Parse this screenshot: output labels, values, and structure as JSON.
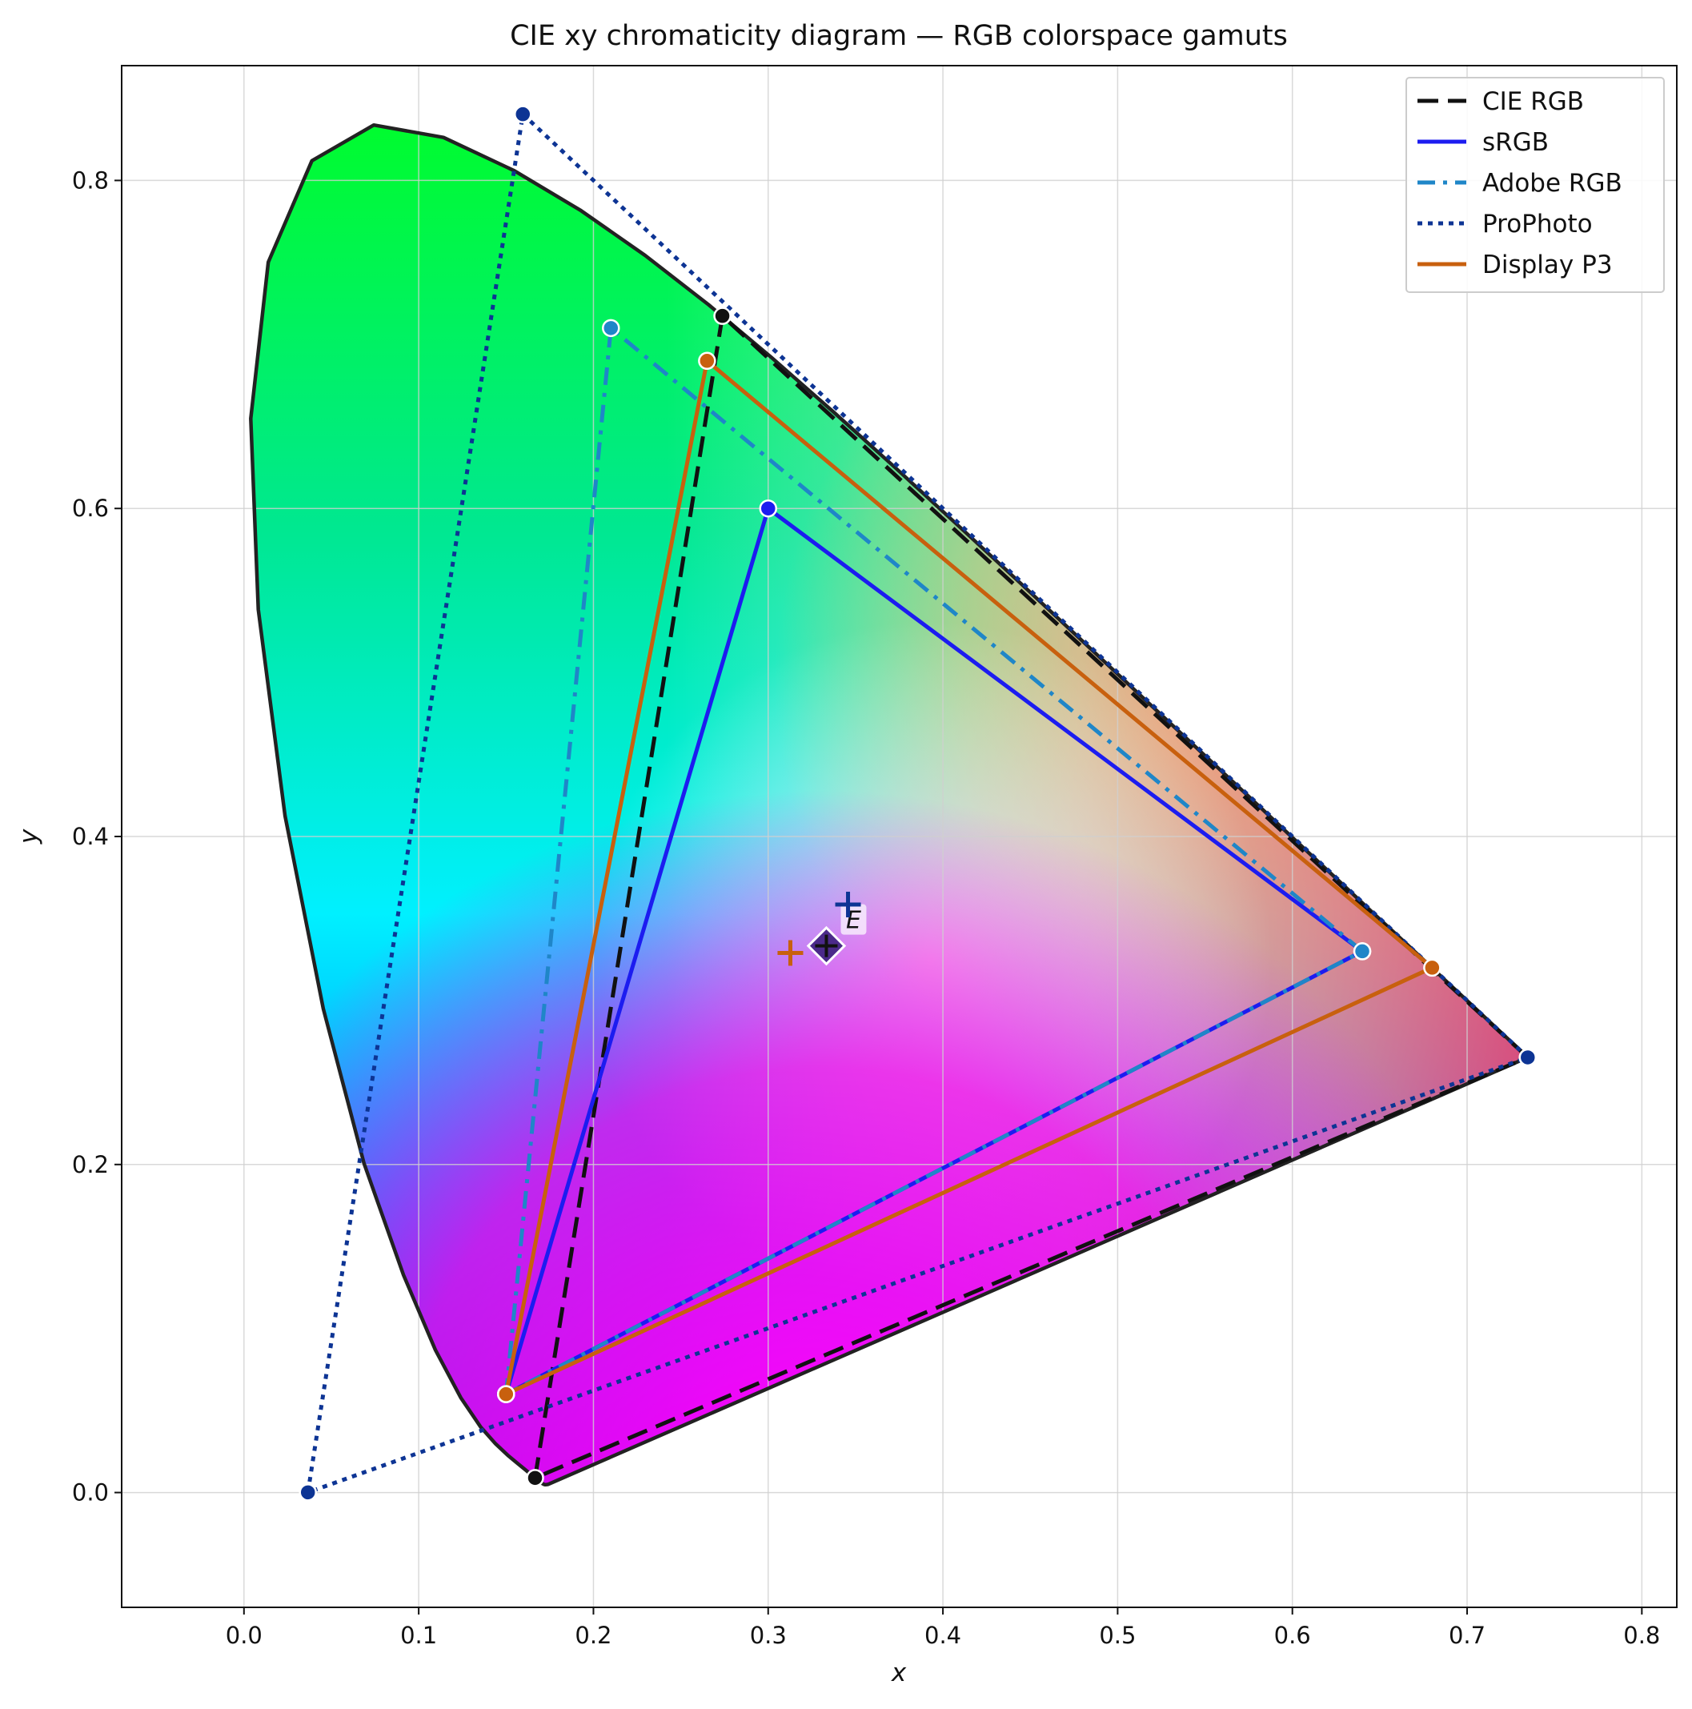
{
  "chart_data": {
    "type": "scatter",
    "title": "CIE xy chromaticity diagram — RGB colorspace gamuts",
    "xlabel": "x",
    "ylabel": "y",
    "xlim": [
      -0.07,
      0.82
    ],
    "ylim": [
      -0.07,
      0.87
    ],
    "grid": true,
    "legend_position": "top-right",
    "x_ticks": [
      "0.0",
      "0.1",
      "0.2",
      "0.3",
      "0.4",
      "0.5",
      "0.6",
      "0.7",
      "0.8"
    ],
    "y_ticks": [
      "0.0",
      "0.2",
      "0.4",
      "0.6",
      "0.8"
    ],
    "spectral_locus": [
      [
        0.1741,
        0.005
      ],
      [
        0.1738,
        0.0049
      ],
      [
        0.1736,
        0.0049
      ],
      [
        0.173,
        0.0048
      ],
      [
        0.1721,
        0.0048
      ],
      [
        0.1714,
        0.0051
      ],
      [
        0.1703,
        0.0058
      ],
      [
        0.1689,
        0.0069
      ],
      [
        0.1669,
        0.0086
      ],
      [
        0.1644,
        0.0109
      ],
      [
        0.1611,
        0.0138
      ],
      [
        0.1566,
        0.0177
      ],
      [
        0.151,
        0.0227
      ],
      [
        0.144,
        0.0297
      ],
      [
        0.1355,
        0.0399
      ],
      [
        0.1241,
        0.0578
      ],
      [
        0.1096,
        0.0868
      ],
      [
        0.0913,
        0.1327
      ],
      [
        0.0687,
        0.2007
      ],
      [
        0.0454,
        0.295
      ],
      [
        0.0235,
        0.4127
      ],
      [
        0.0082,
        0.5384
      ],
      [
        0.0039,
        0.6548
      ],
      [
        0.0139,
        0.7502
      ],
      [
        0.0389,
        0.812
      ],
      [
        0.0743,
        0.8338
      ],
      [
        0.1142,
        0.8262
      ],
      [
        0.1547,
        0.8059
      ],
      [
        0.1929,
        0.7816
      ],
      [
        0.2296,
        0.7543
      ],
      [
        0.2658,
        0.7243
      ],
      [
        0.3016,
        0.6923
      ],
      [
        0.3373,
        0.6589
      ],
      [
        0.3731,
        0.6245
      ],
      [
        0.4087,
        0.5896
      ],
      [
        0.4441,
        0.5547
      ],
      [
        0.4788,
        0.5202
      ],
      [
        0.5125,
        0.4866
      ],
      [
        0.5448,
        0.4544
      ],
      [
        0.5752,
        0.4242
      ],
      [
        0.6029,
        0.3965
      ],
      [
        0.627,
        0.3725
      ],
      [
        0.6482,
        0.3514
      ],
      [
        0.6658,
        0.334
      ],
      [
        0.6801,
        0.3197
      ],
      [
        0.6915,
        0.3083
      ],
      [
        0.7006,
        0.2993
      ],
      [
        0.7079,
        0.292
      ],
      [
        0.714,
        0.2859
      ],
      [
        0.719,
        0.2809
      ],
      [
        0.723,
        0.277
      ],
      [
        0.726,
        0.274
      ],
      [
        0.7283,
        0.2717
      ],
      [
        0.73,
        0.27
      ],
      [
        0.7311,
        0.2689
      ],
      [
        0.732,
        0.268
      ],
      [
        0.7327,
        0.2673
      ],
      [
        0.7334,
        0.2666
      ],
      [
        0.734,
        0.266
      ],
      [
        0.7344,
        0.2656
      ],
      [
        0.7347,
        0.2653
      ]
    ],
    "series": [
      {
        "name": "CIE RGB",
        "color": "#111111",
        "style": "dashed",
        "primaries": [
          [
            0.7347,
            0.2653
          ],
          [
            0.2738,
            0.7174
          ],
          [
            0.1666,
            0.0089
          ]
        ],
        "white_point": [
          0.3333,
          0.3333
        ],
        "white_label": "E"
      },
      {
        "name": "sRGB",
        "color": "#1c1cf0",
        "style": "solid",
        "primaries": [
          [
            0.64,
            0.33
          ],
          [
            0.3,
            0.6
          ],
          [
            0.15,
            0.06
          ]
        ],
        "white_point": [
          0.3127,
          0.329
        ]
      },
      {
        "name": "Adobe RGB",
        "color": "#1f86c8",
        "style": "dashdot",
        "primaries": [
          [
            0.64,
            0.33
          ],
          [
            0.21,
            0.71
          ],
          [
            0.15,
            0.06
          ]
        ],
        "white_point": [
          0.3127,
          0.329
        ]
      },
      {
        "name": "ProPhoto",
        "color": "#0d3494",
        "style": "dotted",
        "primaries": [
          [
            0.7347,
            0.2653
          ],
          [
            0.1596,
            0.8404
          ],
          [
            0.0366,
            0.0001
          ]
        ],
        "white_point": [
          0.3457,
          0.3585
        ]
      },
      {
        "name": "Display P3",
        "color": "#c8600e",
        "style": "solid",
        "primaries": [
          [
            0.68,
            0.32
          ],
          [
            0.265,
            0.69
          ],
          [
            0.15,
            0.06
          ]
        ],
        "white_point": [
          0.3127,
          0.329
        ]
      }
    ]
  }
}
